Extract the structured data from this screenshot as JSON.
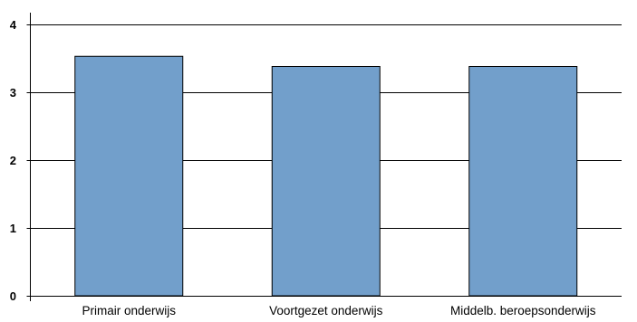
{
  "chart_data": {
    "type": "bar",
    "title": "",
    "xlabel": "",
    "ylabel": "",
    "categories": [
      "Primair onderwijs",
      "Voortgezet onderwijs",
      "Middelb. beroepsonderwijs"
    ],
    "values": [
      3.53,
      3.38,
      3.38
    ],
    "ylim": [
      0,
      4
    ],
    "yticks": [
      0,
      1,
      2,
      3,
      4
    ],
    "grid": "horizontal",
    "legend": "none",
    "colors": {
      "bar": "#729fcb",
      "bar_outline": "#000000",
      "grid": "#000000",
      "axis": "#000000"
    }
  }
}
